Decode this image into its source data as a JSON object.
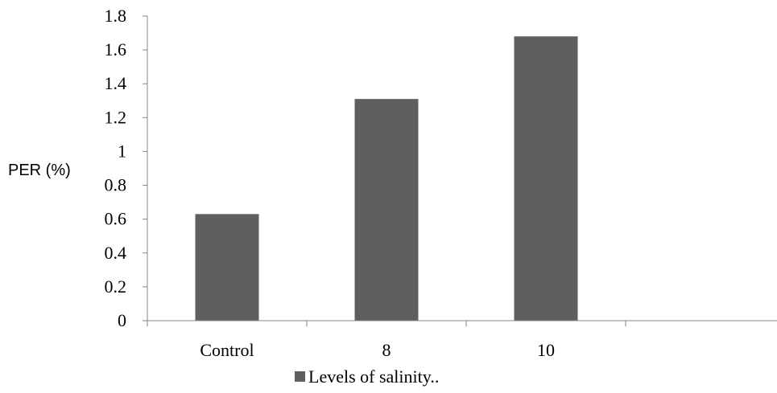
{
  "chart_data": {
    "type": "bar",
    "categories": [
      "Control",
      "8",
      "10",
      ""
    ],
    "series": [
      {
        "name": "Levels of salinity..",
        "values": [
          0.63,
          1.31,
          1.68,
          null
        ],
        "color": "#5f5f5f"
      }
    ],
    "ylabel": "PER (%)",
    "xlabel": "",
    "ylim": [
      0,
      1.8
    ],
    "yticks": [
      "0",
      "0.2",
      "0.4",
      "0.6",
      "0.8",
      "1",
      "1.2",
      "1.4",
      "1.6",
      "1.8"
    ],
    "grid": false,
    "legend_position": "bottom"
  }
}
